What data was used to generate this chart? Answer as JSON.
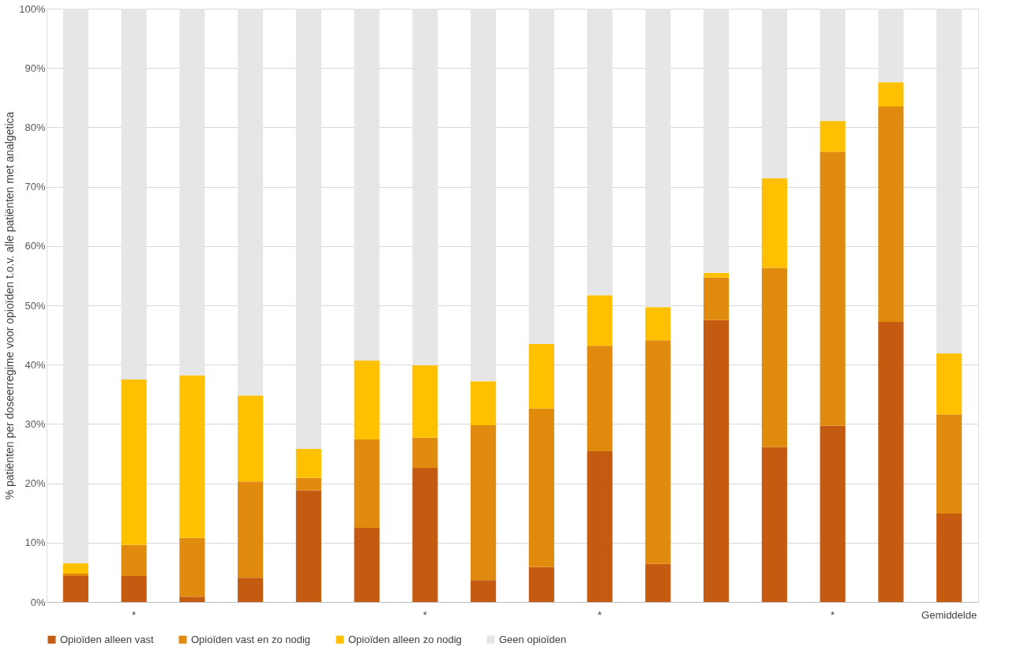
{
  "chart_data": {
    "type": "bar",
    "stacked": true,
    "ylabel": "% patiënten per doseerregime voor opioïden  t.o.v. alle patiënten met analgetica",
    "categories": [
      null,
      "*",
      null,
      null,
      null,
      null,
      "*",
      null,
      null,
      "*",
      null,
      null,
      null,
      "*",
      null,
      "Gemiddelde"
    ],
    "series": [
      {
        "name": "Opioïden alleen vast",
        "color": "#c55a11",
        "values": [
          4.4,
          4.4,
          0.9,
          4.1,
          18.8,
          12.5,
          22.6,
          3.7,
          5.9,
          25.4,
          6.4,
          47.5,
          26.1,
          29.7,
          47.2,
          14.9
        ]
      },
      {
        "name": "Opioïden vast en zo nodig",
        "color": "#e08a0e",
        "values": [
          0.4,
          5.2,
          9.9,
          16.2,
          2.1,
          14.9,
          5.1,
          26.1,
          26.7,
          17.8,
          37.7,
          7.2,
          30.2,
          46.2,
          36.3,
          16.7
        ]
      },
      {
        "name": "Opioïden alleen zo nodig",
        "color": "#ffc000",
        "values": [
          1.7,
          27.9,
          27.4,
          14.5,
          4.9,
          13.3,
          12.2,
          7.4,
          10.9,
          8.5,
          5.6,
          0.8,
          15.1,
          5.2,
          4.1,
          10.3
        ]
      },
      {
        "name": "Geen opioïden",
        "color": "#e7e6e6",
        "values": [
          93.5,
          62.5,
          61.8,
          65.2,
          74.2,
          59.3,
          60.1,
          62.8,
          56.5,
          48.3,
          50.3,
          44.5,
          28.6,
          18.9,
          12.4,
          58.1
        ]
      }
    ],
    "ylim": [
      0,
      100
    ],
    "yticks": [
      {
        "value": 0,
        "label": "0%"
      },
      {
        "value": 10,
        "label": "10%"
      },
      {
        "value": 20,
        "label": "20%"
      },
      {
        "value": 30,
        "label": "30%"
      },
      {
        "value": 40,
        "label": "40%"
      },
      {
        "value": 50,
        "label": "50%"
      },
      {
        "value": 60,
        "label": "60%"
      },
      {
        "value": 70,
        "label": "70%"
      },
      {
        "value": 80,
        "label": "80%"
      },
      {
        "value": 90,
        "label": "90%"
      },
      {
        "value": 100,
        "label": "100%"
      }
    ],
    "grid": "y",
    "legend": "bottom"
  }
}
